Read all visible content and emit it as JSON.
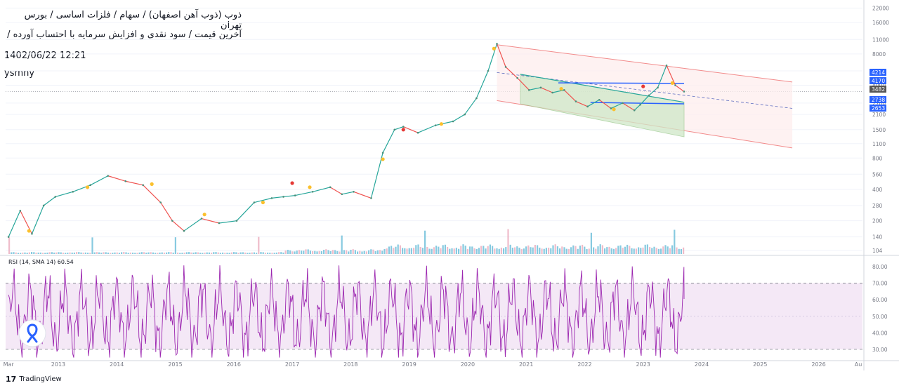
{
  "header": {
    "title_line1": "ذوب (ذوب آهن اصفهان) / سهام / فلزات اساسی / بورس تهران",
    "title_line2": "آخرین قیمت / سود نقدی و افزایش سرمایه با احتساب آورده /",
    "datetime": "1402/06/22 12:21",
    "author": "ysmny"
  },
  "branding": {
    "logo": "17",
    "name": "TradingView"
  },
  "colors": {
    "candle_up": "#26a69a",
    "candle_down": "#ef5350",
    "volume_up": "#5fb8d6",
    "volume_down": "#e9a6b8",
    "rsi_line": "#9c27b0",
    "rsi_band": "#f3e5f5",
    "channel_red": "#f28b8b",
    "channel_green_fill": "#cfe8c8",
    "blue_line": "#2962ff"
  },
  "chart_data": {
    "type": "line",
    "scale": "log",
    "price_axis_ticks": [
      "22000",
      "16000",
      "11000",
      "8000",
      "5500",
      "4000",
      "2700",
      "2100",
      "1500",
      "1100",
      "800",
      "560",
      "400",
      "280",
      "200",
      "140",
      "104"
    ],
    "price_tags": [
      {
        "label": "4214",
        "color": "#2962ff"
      },
      {
        "label": "4170",
        "color": "#2962ff"
      },
      {
        "label": "3482",
        "color": "#555555"
      },
      {
        "label": "2738",
        "color": "#2962ff"
      },
      {
        "label": "2653",
        "color": "#2962ff"
      }
    ],
    "time_axis_ticks": [
      "Mar",
      "2013",
      "2014",
      "2015",
      "2016",
      "2017",
      "2018",
      "2019",
      "2020",
      "2021",
      "2022",
      "2023",
      "2024",
      "2025",
      "2026",
      "Au"
    ],
    "x_start": 2012.15,
    "x_end": 2026.8,
    "price_series": {
      "name": "",
      "x": [
        2012.2,
        2012.4,
        2012.6,
        2012.8,
        2013.0,
        2013.3,
        2013.6,
        2013.9,
        2014.2,
        2014.5,
        2014.8,
        2015.0,
        2015.2,
        2015.5,
        2015.8,
        2016.1,
        2016.4,
        2016.7,
        2016.9,
        2017.1,
        2017.4,
        2017.7,
        2017.9,
        2018.1,
        2018.4,
        2018.6,
        2018.8,
        2018.95,
        2019.2,
        2019.5,
        2019.8,
        2020.0,
        2020.2,
        2020.4,
        2020.55,
        2020.7,
        2020.9,
        2021.1,
        2021.3,
        2021.5,
        2021.7,
        2021.9,
        2022.1,
        2022.3,
        2022.5,
        2022.7,
        2022.9,
        2023.0,
        2023.15,
        2023.3,
        2023.45,
        2023.6,
        2023.75
      ],
      "y": [
        140,
        250,
        150,
        280,
        340,
        380,
        440,
        540,
        480,
        440,
        300,
        200,
        160,
        210,
        190,
        200,
        300,
        330,
        340,
        350,
        380,
        420,
        360,
        380,
        330,
        900,
        1500,
        1600,
        1400,
        1650,
        1800,
        2100,
        3000,
        5500,
        10000,
        6000,
        4700,
        3600,
        3800,
        3400,
        3600,
        2800,
        2500,
        2900,
        2400,
        2700,
        2300,
        2600,
        3200,
        3800,
        6200,
        4000,
        3482
      ]
    },
    "rsi": {
      "label": "RSI (14, SMA 14) 60.54",
      "value": 60.54,
      "axis_ticks": [
        "80.00",
        "70.00",
        "60.00",
        "50.00",
        "40.00",
        "30.00"
      ],
      "band": [
        30,
        70
      ]
    }
  }
}
